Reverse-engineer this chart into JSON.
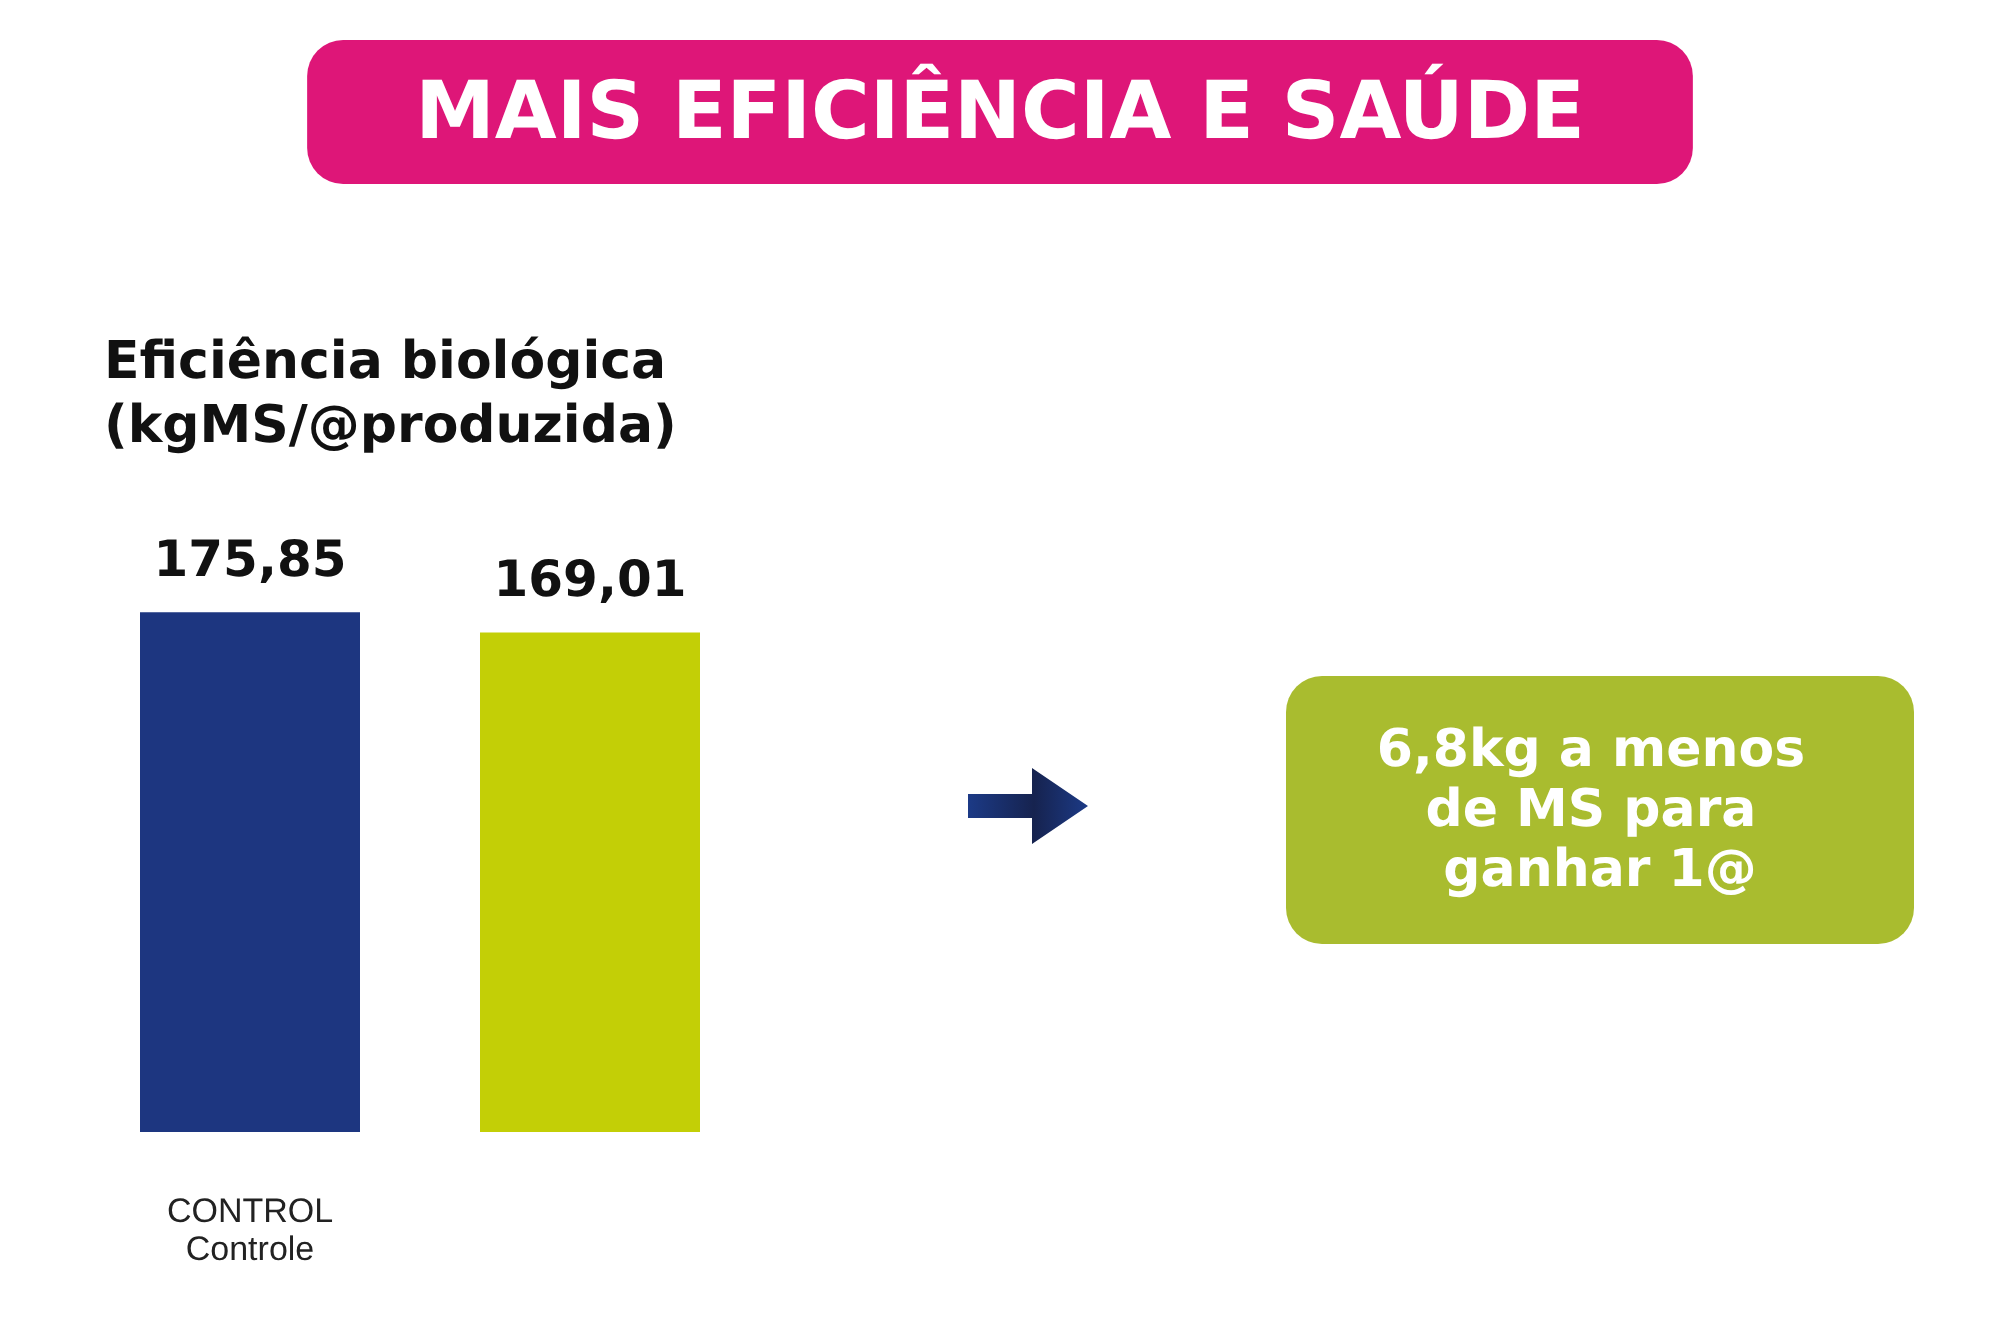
{
  "chart_data": {
    "type": "bar",
    "title": "MAIS EFICIÊNCIA E SAÚDE",
    "subtitle": "Eficiência biológica (kgMS/@produzida)",
    "categories": [
      "CONTROL\nControle",
      null
    ],
    "values": [
      175.85,
      169.01
    ],
    "colors": [
      "#1d3680",
      "#c3cf06"
    ],
    "value_labels": [
      "175,85",
      "169,01"
    ],
    "annotations": [
      "6,8kg a menos de MS para ganhar 1@"
    ]
  }
}
